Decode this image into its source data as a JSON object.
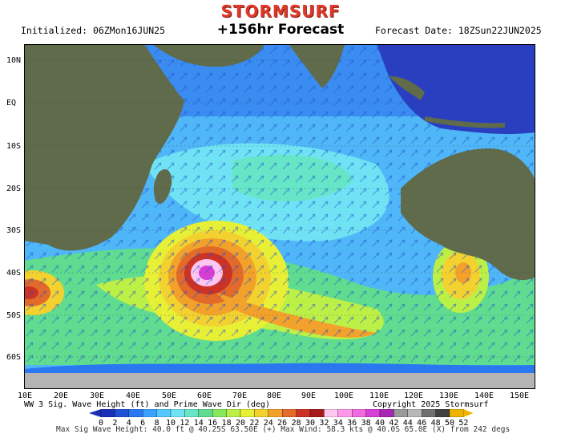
{
  "header": {
    "brand": "STORMSURF",
    "initialized": "Initialized: 06ZMon16JUN25",
    "title": "+156hr Forecast",
    "forecast_date": "Forecast Date: 18ZSun22JUN2025"
  },
  "axes": {
    "lat_labels": [
      "10N",
      "EQ",
      "10S",
      "20S",
      "30S",
      "40S",
      "50S",
      "60S"
    ],
    "lon_labels": [
      "10E",
      "20E",
      "30E",
      "40E",
      "50E",
      "60E",
      "70E",
      "80E",
      "90E",
      "100E",
      "110E",
      "120E",
      "130E",
      "140E",
      "150E"
    ]
  },
  "info": {
    "description": "WW 3 Sig. Wave Height (ft) and Prime Wave Dir (deg)",
    "copyright": "Copyright 2025 Stormsurf",
    "footer": "Max Sig Wave Height: 40.0 ft @ 40.25S 63.50E (+)  Max Wind: 58.3 kts @ 40.0S 65.0E (X) from 242 degs"
  },
  "colorbar": {
    "labels": [
      "0",
      "2",
      "4",
      "6",
      "8",
      "10",
      "12",
      "14",
      "16",
      "18",
      "20",
      "22",
      "24",
      "26",
      "28",
      "30",
      "32",
      "34",
      "36",
      "38",
      "40",
      "42",
      "44",
      "46",
      "48",
      "50",
      "52"
    ],
    "colors": [
      "#1c2eb8",
      "#1f52d6",
      "#2a78f0",
      "#3ba2ff",
      "#55c8ff",
      "#6fe3f3",
      "#66e6c7",
      "#5fdc8f",
      "#86e85a",
      "#bdf046",
      "#e8f036",
      "#f3d22f",
      "#f2a22a",
      "#e26b2a",
      "#cc3325",
      "#a81818",
      "#ffc6f0",
      "#ff98e8",
      "#f06ae0",
      "#d63ed6",
      "#a724b4",
      "#9a9a9a",
      "#b8b8b8",
      "#707070",
      "#404040",
      "#f0b400"
    ]
  }
}
